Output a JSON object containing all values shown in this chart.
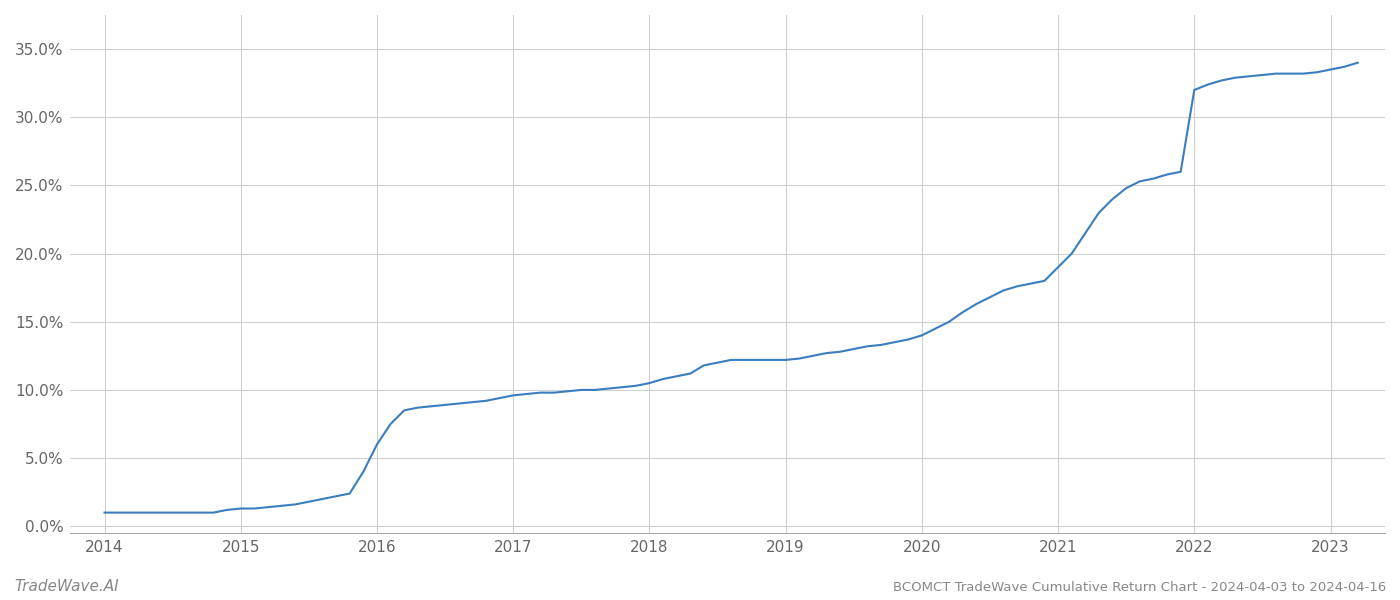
{
  "title": "BCOMCT TradeWave Cumulative Return Chart - 2024-04-03 to 2024-04-16",
  "watermark": "TradeWave.AI",
  "line_color": "#3a7ebf",
  "background_color": "#ffffff",
  "grid_color": "#d0d0d0",
  "x_values": [
    2014.0,
    2014.1,
    2014.2,
    2014.3,
    2014.4,
    2014.5,
    2014.6,
    2014.7,
    2014.8,
    2014.9,
    2015.0,
    2015.1,
    2015.2,
    2015.3,
    2015.4,
    2015.5,
    2015.6,
    2015.7,
    2015.8,
    2015.9,
    2016.0,
    2016.1,
    2016.2,
    2016.3,
    2016.4,
    2016.5,
    2016.6,
    2016.7,
    2016.8,
    2016.9,
    2017.0,
    2017.1,
    2017.2,
    2017.3,
    2017.4,
    2017.5,
    2017.6,
    2017.7,
    2017.8,
    2017.9,
    2018.0,
    2018.1,
    2018.2,
    2018.3,
    2018.4,
    2018.5,
    2018.6,
    2018.7,
    2018.8,
    2018.9,
    2019.0,
    2019.1,
    2019.2,
    2019.3,
    2019.4,
    2019.5,
    2019.6,
    2019.7,
    2019.8,
    2019.9,
    2020.0,
    2020.1,
    2020.2,
    2020.3,
    2020.4,
    2020.5,
    2020.6,
    2020.7,
    2020.8,
    2020.9,
    2021.0,
    2021.1,
    2021.2,
    2021.3,
    2021.4,
    2021.5,
    2021.6,
    2021.7,
    2021.8,
    2021.9,
    2022.0,
    2022.1,
    2022.2,
    2022.3,
    2022.4,
    2022.5,
    2022.6,
    2022.7,
    2022.8,
    2022.9,
    2023.0,
    2023.1,
    2023.2
  ],
  "y_values": [
    0.01,
    0.01,
    0.01,
    0.01,
    0.01,
    0.01,
    0.01,
    0.01,
    0.01,
    0.012,
    0.013,
    0.013,
    0.014,
    0.015,
    0.016,
    0.018,
    0.02,
    0.022,
    0.024,
    0.04,
    0.06,
    0.075,
    0.085,
    0.087,
    0.088,
    0.089,
    0.09,
    0.091,
    0.092,
    0.094,
    0.096,
    0.097,
    0.098,
    0.098,
    0.099,
    0.1,
    0.1,
    0.101,
    0.102,
    0.103,
    0.105,
    0.108,
    0.11,
    0.112,
    0.118,
    0.12,
    0.122,
    0.122,
    0.122,
    0.122,
    0.122,
    0.123,
    0.125,
    0.127,
    0.128,
    0.13,
    0.132,
    0.133,
    0.135,
    0.137,
    0.14,
    0.145,
    0.15,
    0.157,
    0.163,
    0.168,
    0.173,
    0.176,
    0.178,
    0.18,
    0.19,
    0.2,
    0.215,
    0.23,
    0.24,
    0.248,
    0.253,
    0.255,
    0.258,
    0.26,
    0.32,
    0.324,
    0.327,
    0.329,
    0.33,
    0.331,
    0.332,
    0.332,
    0.332,
    0.333,
    0.335,
    0.337,
    0.34
  ],
  "xlim": [
    2013.75,
    2023.4
  ],
  "ylim": [
    -0.005,
    0.375
  ],
  "yticks": [
    0.0,
    0.05,
    0.1,
    0.15,
    0.2,
    0.25,
    0.3,
    0.35
  ],
  "xticks": [
    2014,
    2015,
    2016,
    2017,
    2018,
    2019,
    2020,
    2021,
    2022,
    2023
  ],
  "line_width": 1.5
}
